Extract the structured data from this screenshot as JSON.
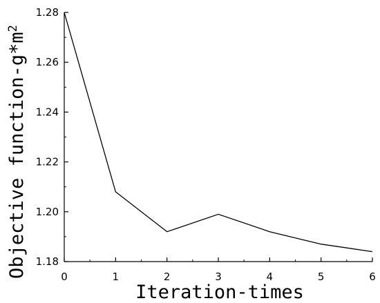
{
  "chart_data": {
    "type": "line",
    "xlabel": "Iteration-times",
    "ylabel": "Objective function-g*m",
    "ylabel_superscript": "2",
    "x": [
      0,
      1,
      2,
      3,
      4,
      5,
      6
    ],
    "series": [
      {
        "values": [
          1.28,
          1.208,
          1.192,
          1.199,
          1.192,
          1.187,
          1.184
        ]
      }
    ],
    "xlim": [
      0,
      6
    ],
    "ylim": [
      1.18,
      1.28
    ],
    "x_ticks": [
      "0",
      "1",
      "2",
      "3",
      "4",
      "5",
      "6"
    ],
    "y_ticks": [
      "1.18",
      "1.20",
      "1.22",
      "1.24",
      "1.26",
      "1.28"
    ],
    "grid": false,
    "line_color": "#000000"
  }
}
